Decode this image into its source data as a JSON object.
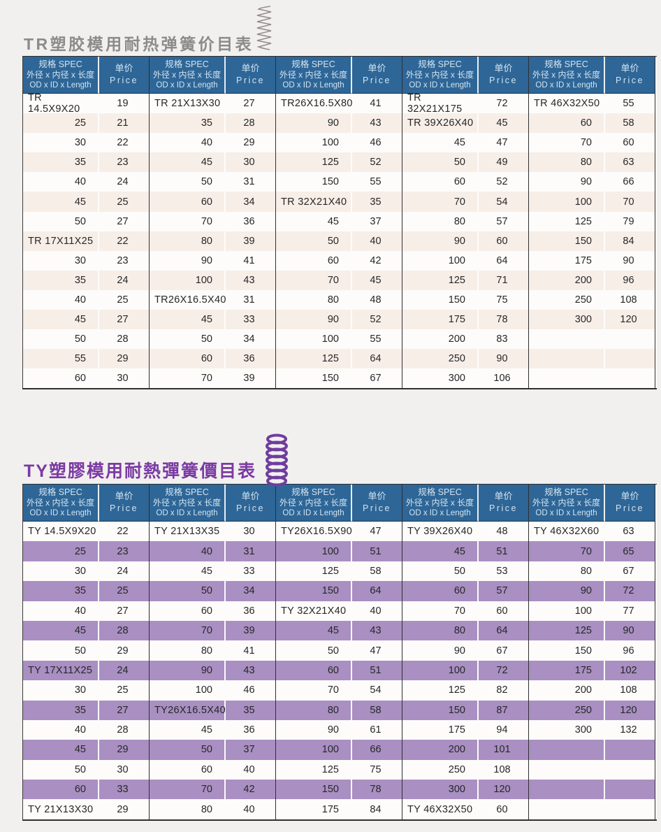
{
  "page": {
    "background": "#f2f0ee"
  },
  "colors": {
    "header_bg": "#2e6697",
    "header_text": "#d3e4f0",
    "border_dark": "#2f2f2f",
    "body_text": "#272727",
    "row_white": "#fdfcfb"
  },
  "header_labels": {
    "spec_l1": "规格 SPEC",
    "spec_l2": "外径 x 内径 x 长度",
    "spec_l3": "OD x ID x Length",
    "price_l1": "单价",
    "price_l2": "Price"
  },
  "tables": [
    {
      "id": "TR",
      "title": "TR塑胶模用耐热弹簧价目表",
      "title_color": "#8b8b8b",
      "stripe_color": "#f7eee8",
      "spring_color": "#968b88",
      "groups": [
        {
          "rows": [
            [
              "TR 14.5X9X20",
              "19"
            ],
            [
              "25",
              "21"
            ],
            [
              "30",
              "22"
            ],
            [
              "35",
              "23"
            ],
            [
              "40",
              "24"
            ],
            [
              "45",
              "25"
            ],
            [
              "50",
              "27"
            ],
            [
              "TR 17X11X25",
              "22"
            ],
            [
              "30",
              "23"
            ],
            [
              "35",
              "24"
            ],
            [
              "40",
              "25"
            ],
            [
              "45",
              "27"
            ],
            [
              "50",
              "28"
            ],
            [
              "55",
              "29"
            ],
            [
              "60",
              "30"
            ]
          ]
        },
        {
          "rows": [
            [
              "TR 21X13X30",
              "27"
            ],
            [
              "35",
              "28"
            ],
            [
              "40",
              "29"
            ],
            [
              "45",
              "30"
            ],
            [
              "50",
              "31"
            ],
            [
              "60",
              "34"
            ],
            [
              "70",
              "36"
            ],
            [
              "80",
              "39"
            ],
            [
              "90",
              "41"
            ],
            [
              "100",
              "43"
            ],
            [
              "TR26X16.5X40",
              "31"
            ],
            [
              "45",
              "33"
            ],
            [
              "50",
              "34"
            ],
            [
              "60",
              "36"
            ],
            [
              "70",
              "39"
            ]
          ]
        },
        {
          "rows": [
            [
              "TR26X16.5X80",
              "41"
            ],
            [
              "90",
              "43"
            ],
            [
              "100",
              "46"
            ],
            [
              "125",
              "52"
            ],
            [
              "150",
              "55"
            ],
            [
              "TR 32X21X40",
              "35"
            ],
            [
              "45",
              "37"
            ],
            [
              "50",
              "40"
            ],
            [
              "60",
              "42"
            ],
            [
              "70",
              "45"
            ],
            [
              "80",
              "48"
            ],
            [
              "90",
              "52"
            ],
            [
              "100",
              "55"
            ],
            [
              "125",
              "64"
            ],
            [
              "150",
              "67"
            ]
          ]
        },
        {
          "rows": [
            [
              "TR 32X21X175",
              "72"
            ],
            [
              "TR 39X26X40",
              "45"
            ],
            [
              "45",
              "47"
            ],
            [
              "50",
              "49"
            ],
            [
              "60",
              "52"
            ],
            [
              "70",
              "54"
            ],
            [
              "80",
              "57"
            ],
            [
              "90",
              "60"
            ],
            [
              "100",
              "64"
            ],
            [
              "125",
              "71"
            ],
            [
              "150",
              "75"
            ],
            [
              "175",
              "78"
            ],
            [
              "200",
              "83"
            ],
            [
              "250",
              "90"
            ],
            [
              "300",
              "106"
            ]
          ]
        },
        {
          "rows": [
            [
              "TR 46X32X50",
              "55"
            ],
            [
              "60",
              "58"
            ],
            [
              "70",
              "60"
            ],
            [
              "80",
              "63"
            ],
            [
              "90",
              "66"
            ],
            [
              "100",
              "70"
            ],
            [
              "125",
              "79"
            ],
            [
              "150",
              "84"
            ],
            [
              "175",
              "90"
            ],
            [
              "200",
              "96"
            ],
            [
              "250",
              "108"
            ],
            [
              "300",
              "120"
            ],
            [
              "",
              ""
            ],
            [
              "",
              ""
            ],
            [
              "",
              ""
            ]
          ]
        }
      ]
    },
    {
      "id": "TY",
      "title": "TY塑膠模用耐熱彈簧價目表",
      "title_color": "#7b3aa4",
      "stripe_color": "#a98fc2",
      "spring_color": "#6f3d9e",
      "groups": [
        {
          "rows": [
            [
              "TY 14.5X9X20",
              "22"
            ],
            [
              "25",
              "23"
            ],
            [
              "30",
              "24"
            ],
            [
              "35",
              "25"
            ],
            [
              "40",
              "27"
            ],
            [
              "45",
              "28"
            ],
            [
              "50",
              "29"
            ],
            [
              "TY 17X11X25",
              "24"
            ],
            [
              "30",
              "25"
            ],
            [
              "35",
              "27"
            ],
            [
              "40",
              "28"
            ],
            [
              "45",
              "29"
            ],
            [
              "50",
              "30"
            ],
            [
              "60",
              "33"
            ],
            [
              "TY 21X13X30",
              "29"
            ]
          ]
        },
        {
          "rows": [
            [
              "TY 21X13X35",
              "30"
            ],
            [
              "40",
              "31"
            ],
            [
              "45",
              "33"
            ],
            [
              "50",
              "34"
            ],
            [
              "60",
              "36"
            ],
            [
              "70",
              "39"
            ],
            [
              "80",
              "41"
            ],
            [
              "90",
              "43"
            ],
            [
              "100",
              "46"
            ],
            [
              "TY26X16.5X40",
              "35"
            ],
            [
              "45",
              "36"
            ],
            [
              "50",
              "37"
            ],
            [
              "60",
              "40"
            ],
            [
              "70",
              "42"
            ],
            [
              "80",
              "40"
            ]
          ]
        },
        {
          "rows": [
            [
              "TY26X16.5X90",
              "47"
            ],
            [
              "100",
              "51"
            ],
            [
              "125",
              "58"
            ],
            [
              "150",
              "64"
            ],
            [
              "TY 32X21X40",
              "40"
            ],
            [
              "45",
              "43"
            ],
            [
              "50",
              "47"
            ],
            [
              "60",
              "51"
            ],
            [
              "70",
              "54"
            ],
            [
              "80",
              "58"
            ],
            [
              "90",
              "61"
            ],
            [
              "100",
              "66"
            ],
            [
              "125",
              "75"
            ],
            [
              "150",
              "78"
            ],
            [
              "175",
              "84"
            ]
          ]
        },
        {
          "rows": [
            [
              "TY 39X26X40",
              "48"
            ],
            [
              "45",
              "51"
            ],
            [
              "50",
              "53"
            ],
            [
              "60",
              "57"
            ],
            [
              "70",
              "60"
            ],
            [
              "80",
              "64"
            ],
            [
              "90",
              "67"
            ],
            [
              "100",
              "72"
            ],
            [
              "125",
              "82"
            ],
            [
              "150",
              "87"
            ],
            [
              "175",
              "94"
            ],
            [
              "200",
              "101"
            ],
            [
              "250",
              "108"
            ],
            [
              "300",
              "120"
            ],
            [
              "TY 46X32X50",
              "60"
            ]
          ]
        },
        {
          "rows": [
            [
              "TY 46X32X60",
              "63"
            ],
            [
              "70",
              "65"
            ],
            [
              "80",
              "67"
            ],
            [
              "90",
              "72"
            ],
            [
              "100",
              "77"
            ],
            [
              "125",
              "90"
            ],
            [
              "150",
              "96"
            ],
            [
              "175",
              "102"
            ],
            [
              "200",
              "108"
            ],
            [
              "250",
              "120"
            ],
            [
              "300",
              "132"
            ],
            [
              "",
              ""
            ],
            [
              "",
              ""
            ],
            [
              "",
              ""
            ],
            [
              "",
              ""
            ]
          ]
        }
      ]
    }
  ]
}
